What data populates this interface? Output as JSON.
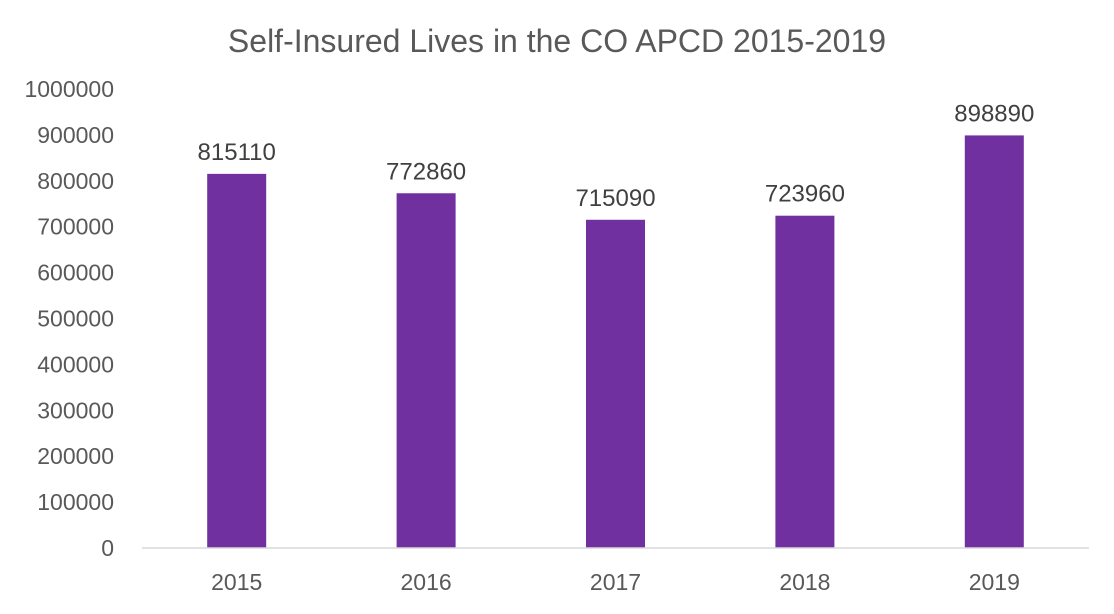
{
  "chart_data": {
    "type": "bar",
    "title": "Self-Insured Lives in the CO APCD 2015-2019",
    "categories": [
      "2015",
      "2016",
      "2017",
      "2018",
      "2019"
    ],
    "values": [
      815110,
      772860,
      715090,
      723960,
      898890
    ],
    "data_labels": [
      "815110",
      "772860",
      "715090",
      "723960",
      "898890"
    ],
    "xlabel": "",
    "ylabel": "",
    "ylim": [
      0,
      1000000
    ],
    "yticks": [
      0,
      100000,
      200000,
      300000,
      400000,
      500000,
      600000,
      700000,
      800000,
      900000,
      1000000
    ],
    "ytick_labels": [
      "0",
      "100000",
      "200000",
      "300000",
      "400000",
      "500000",
      "600000",
      "700000",
      "800000",
      "900000",
      "1000000"
    ],
    "grid": false,
    "legend": "none",
    "colors": {
      "bar": "#7030a0",
      "axis": "#d9d9d9",
      "text": "#595959"
    }
  }
}
